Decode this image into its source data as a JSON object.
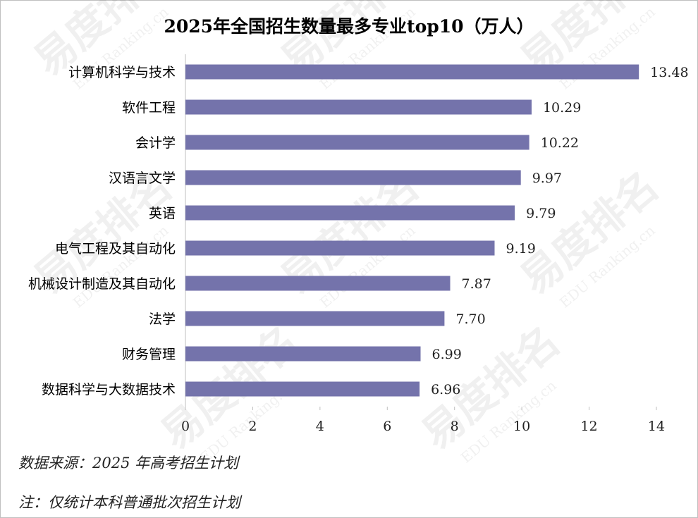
{
  "chart_data": {
    "type": "bar",
    "orientation": "horizontal",
    "title": "2025年全国招生数量最多专业top10（万人）",
    "categories": [
      "计算机科学与技术",
      "软件工程",
      "会计学",
      "汉语言文学",
      "英语",
      "电气工程及其自动化",
      "机械设计制造及其自动化",
      "法学",
      "财务管理",
      "数据科学与大数据技术"
    ],
    "values": [
      13.48,
      10.29,
      10.22,
      9.97,
      9.79,
      9.19,
      7.87,
      7.7,
      6.99,
      6.96
    ],
    "value_labels": [
      "13.48",
      "10.29",
      "10.22",
      "9.97",
      "9.79",
      "9.19",
      "7.87",
      "7.70",
      "6.99",
      "6.96"
    ],
    "xlim": [
      0,
      14
    ],
    "xticks": [
      0,
      2,
      4,
      6,
      8,
      10,
      12,
      14
    ],
    "grid": false,
    "bar_color": "#7473ab"
  },
  "notes": {
    "source": "数据来源：2025 年高考招生计划",
    "footnote": "注：仅统计本科普通批次招生计划"
  },
  "watermark": {
    "logo_text": "易度排名",
    "url_text": "EDU Ranking.cn"
  }
}
